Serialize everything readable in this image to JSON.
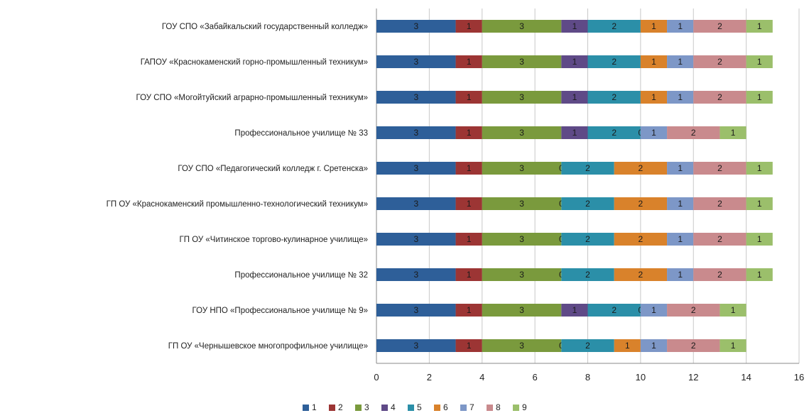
{
  "chart_data": {
    "type": "bar",
    "orientation": "horizontal",
    "stacked": true,
    "categories": [
      "ГОУ СПО «Забайкальский государственный колледж»",
      "ГАПОУ «Краснокаменский горно-промышленный техникум»",
      "ГОУ СПО «Могойтуйский аграрно-промышленный техникум»",
      "Профессиональное училище № 33",
      "ГОУ СПО «Педагогический колледж г. Сретенска»",
      "ГП ОУ «Краснокаменский промышленно-технологический техникум»",
      "ГП ОУ «Читинское торгово-кулинарное училище»",
      "Профессиональное училище № 32",
      "ГОУ НПО «Профессиональное училище № 9»",
      "ГП ОУ «Чернышевское многопрофильное училище»"
    ],
    "series": [
      {
        "name": "1",
        "color": "#2e5f99",
        "values": [
          3,
          3,
          3,
          3,
          3,
          3,
          3,
          3,
          3,
          3
        ]
      },
      {
        "name": "2",
        "color": "#9c3534",
        "values": [
          1,
          1,
          1,
          1,
          1,
          1,
          1,
          1,
          1,
          1
        ]
      },
      {
        "name": "3",
        "color": "#7a9a3d",
        "values": [
          3,
          3,
          3,
          3,
          3,
          3,
          3,
          3,
          3,
          3
        ]
      },
      {
        "name": "4",
        "color": "#5f4a87",
        "values": [
          1,
          1,
          1,
          1,
          0,
          0,
          0,
          0,
          1,
          0
        ]
      },
      {
        "name": "5",
        "color": "#2b8fa8",
        "values": [
          2,
          2,
          2,
          2,
          2,
          2,
          2,
          2,
          2,
          2
        ]
      },
      {
        "name": "6",
        "color": "#d9822b",
        "values": [
          1,
          1,
          1,
          0,
          2,
          2,
          2,
          2,
          0,
          1
        ]
      },
      {
        "name": "7",
        "color": "#7d97c7",
        "values": [
          1,
          1,
          1,
          1,
          1,
          1,
          1,
          1,
          1,
          1
        ]
      },
      {
        "name": "8",
        "color": "#c98a8d",
        "values": [
          2,
          2,
          2,
          2,
          2,
          2,
          2,
          2,
          2,
          2
        ]
      },
      {
        "name": "9",
        "color": "#9bbf6b",
        "values": [
          1,
          1,
          1,
          1,
          1,
          1,
          1,
          1,
          1,
          1
        ]
      }
    ],
    "xlim": [
      0,
      16
    ],
    "xticks": [
      "0",
      "2",
      "4",
      "6",
      "8",
      "10",
      "12",
      "14",
      "16"
    ],
    "grid": true,
    "legend_position": "bottom"
  }
}
